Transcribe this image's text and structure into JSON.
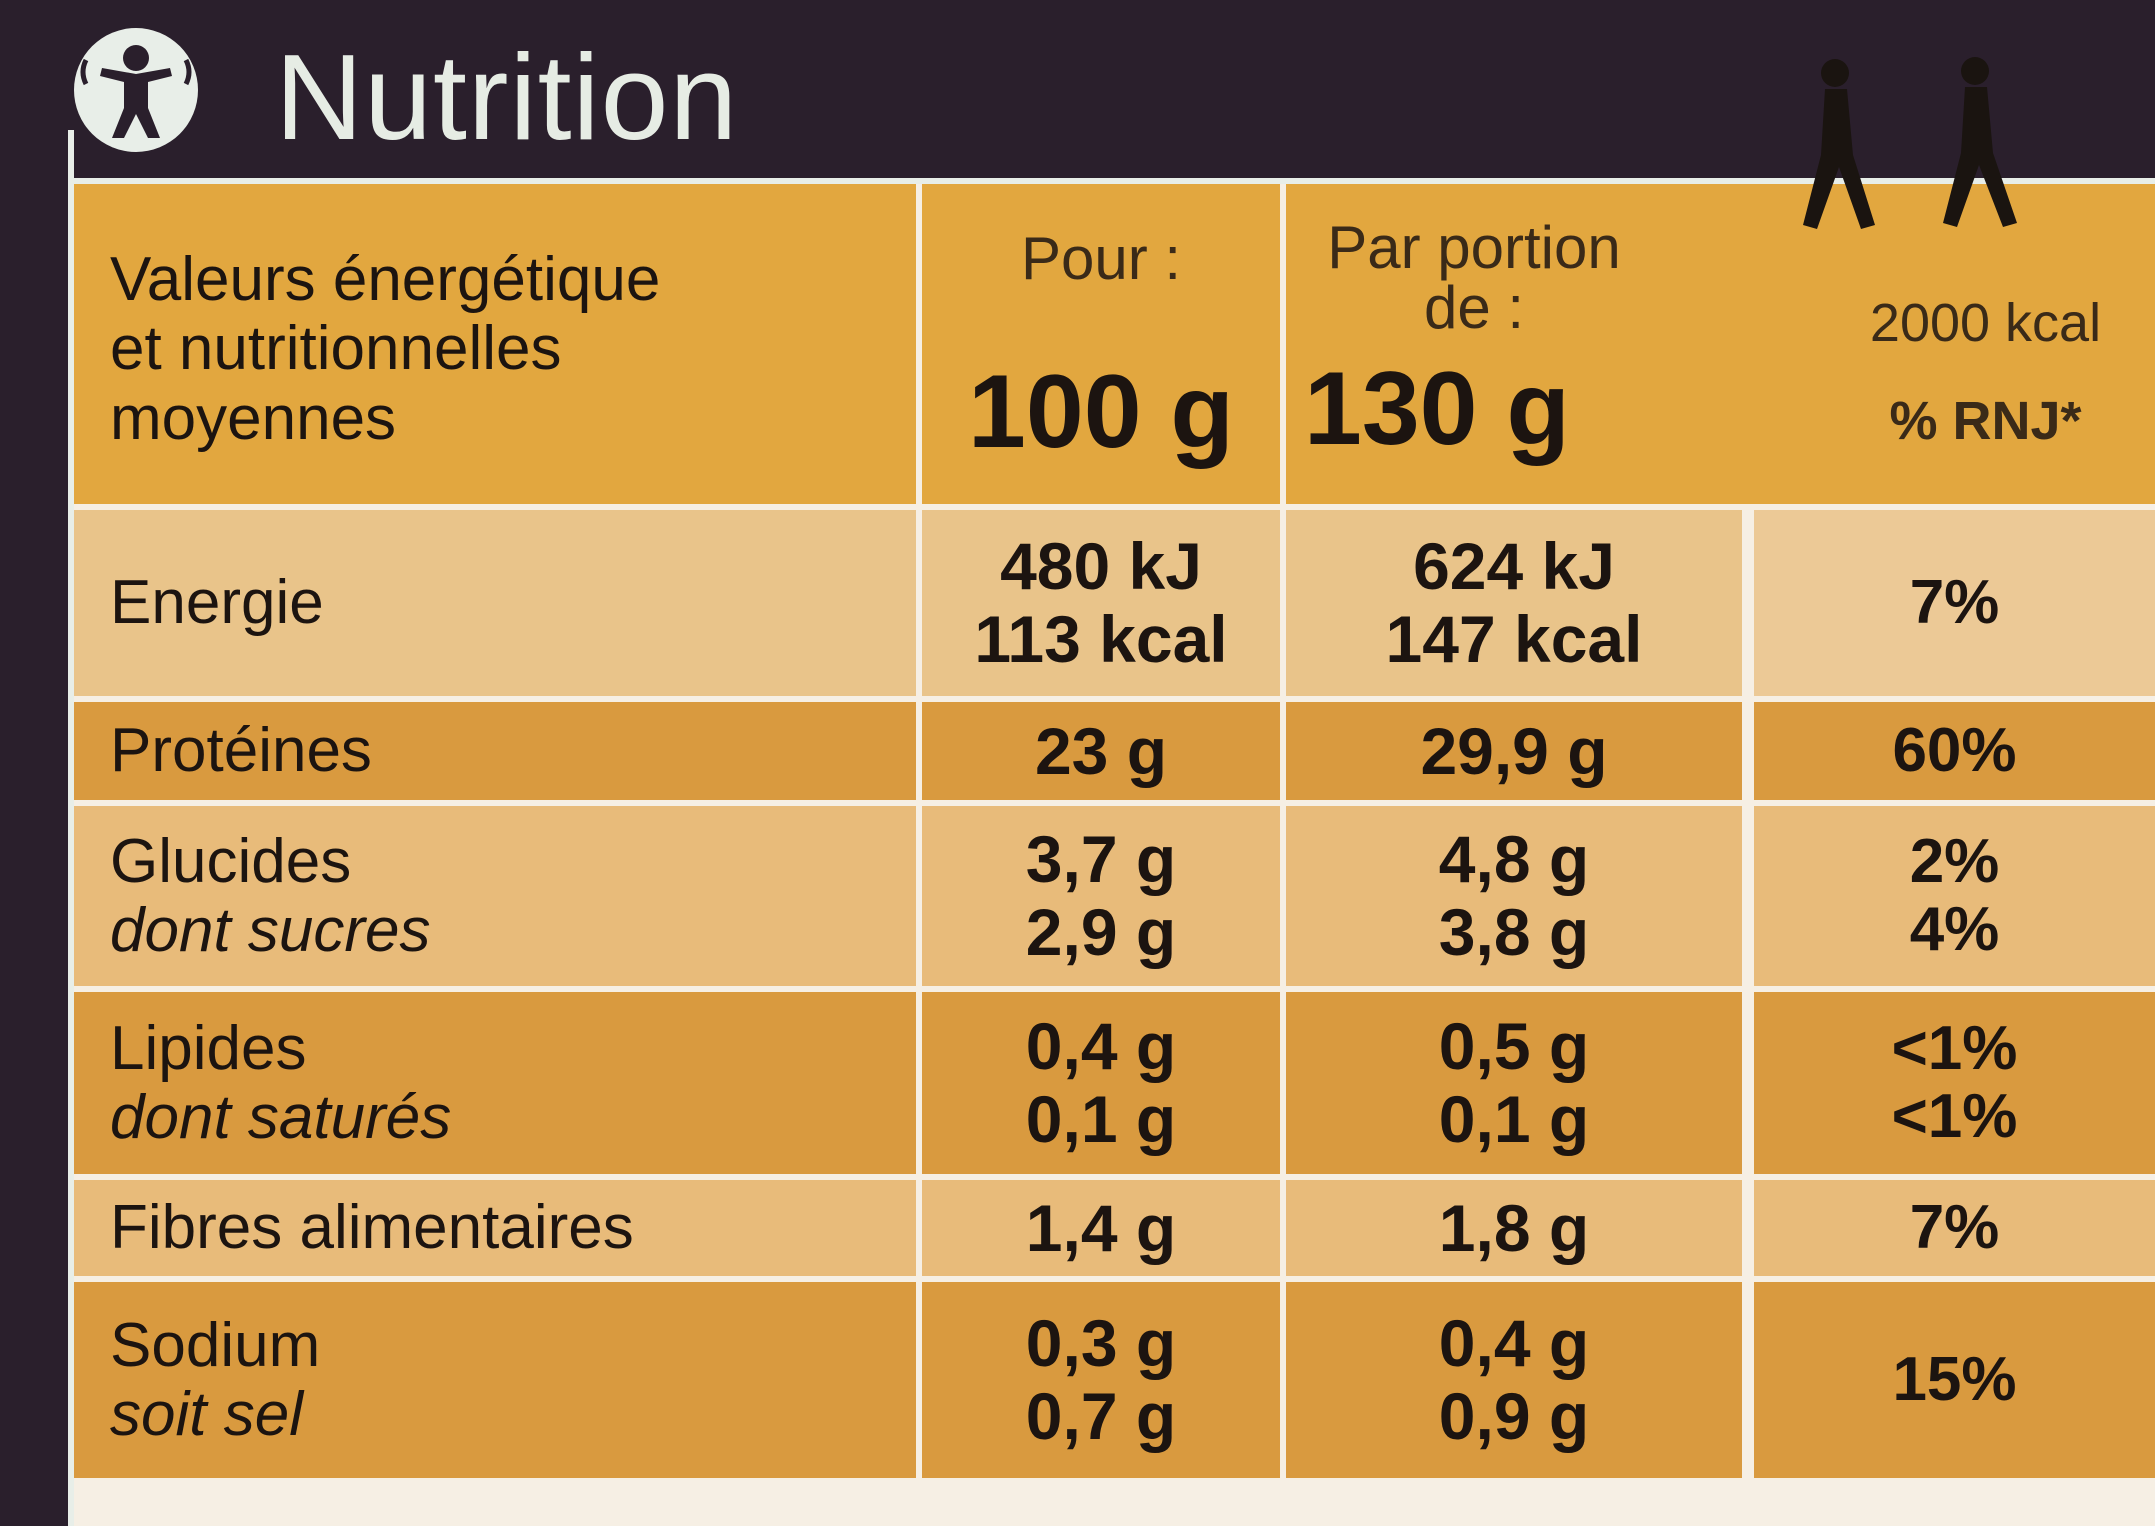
{
  "title": "Nutrition",
  "header": {
    "row_label_lines": [
      "Valeurs énergétique",
      "et nutritionnelles",
      "moyennes"
    ],
    "col_100_top": "Pour :",
    "col_100_value": "100 g",
    "col_portion_top1": "Par portion",
    "col_portion_top2": "de :",
    "col_portion_value": "130 g",
    "col_rnj_top": "2000 kcal",
    "col_rnj_label": "% RNJ*"
  },
  "rows": [
    {
      "labels": [
        "Energie"
      ],
      "per100": [
        "480 kJ",
        "113 kcal"
      ],
      "portion": [
        "624 kJ",
        "147 kcal"
      ],
      "rnj": [
        "7%"
      ]
    },
    {
      "labels": [
        "Protéines"
      ],
      "per100": [
        "23 g"
      ],
      "portion": [
        "29,9 g"
      ],
      "rnj": [
        "60%"
      ]
    },
    {
      "labels": [
        "Glucides",
        "dont sucres"
      ],
      "per100": [
        "3,7 g",
        "2,9 g"
      ],
      "portion": [
        "4,8 g",
        "3,8 g"
      ],
      "rnj": [
        "2%",
        "4%"
      ]
    },
    {
      "labels": [
        "Lipides",
        "dont saturés"
      ],
      "per100": [
        "0,4 g",
        "0,1 g"
      ],
      "portion": [
        "0,5 g",
        "0,1 g"
      ],
      "rnj": [
        "<1%",
        "<1%"
      ]
    },
    {
      "labels": [
        "Fibres alimentaires"
      ],
      "per100": [
        "1,4 g"
      ],
      "portion": [
        "1,8 g"
      ],
      "rnj": [
        "7%"
      ]
    },
    {
      "labels": [
        "Sodium",
        "soit sel"
      ],
      "per100": [
        "0,3 g",
        "0,7 g"
      ],
      "portion": [
        "0,4 g",
        "0,9 g"
      ],
      "rnj": [
        "15%"
      ]
    }
  ],
  "colors": {
    "background": "#2a1f2c",
    "accent": "#e2a73f",
    "light": "#e9c48a"
  }
}
